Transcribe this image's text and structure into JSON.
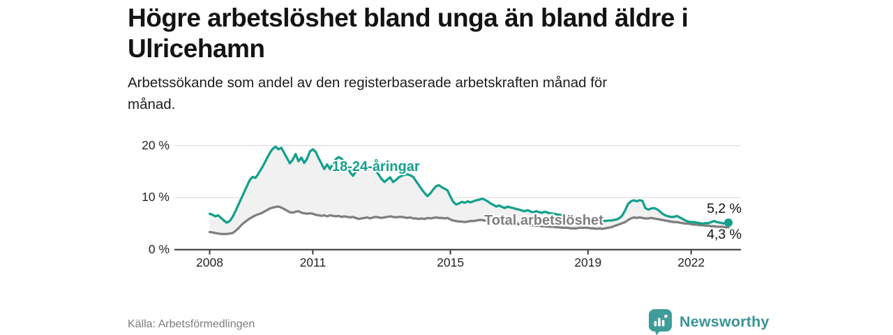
{
  "header": {
    "title": "Högre arbetslöshet bland unga än bland äldre i Ulricehamn",
    "title_lines": [
      "Högre arbetslöshet bland unga än bland äldre i",
      "Ulricehamn"
    ],
    "subtitle_lines": [
      "Arbetssökande som andel av den registerbaserade arbetskraften månad för",
      "månad."
    ]
  },
  "chart_data": {
    "type": "line",
    "x_start_year": 2008,
    "x_months_per_point": 1,
    "x_tick_years": [
      2008,
      2011,
      2015,
      2019,
      2022
    ],
    "y_ticks": [
      {
        "value": 0,
        "label": "0 %"
      },
      {
        "value": 10,
        "label": "10 %"
      },
      {
        "value": 20,
        "label": "20 %"
      }
    ],
    "ylim": [
      0,
      21.5
    ],
    "grid": "horizontal",
    "area_between_series": true,
    "series": [
      {
        "name": "18-24-åringar",
        "color": "#14a08d",
        "values": [
          6.9,
          6.7,
          6.4,
          6.6,
          6.1,
          5.6,
          5.2,
          5.5,
          6.3,
          7.4,
          8.6,
          9.8,
          11.0,
          12.2,
          13.4,
          14.0,
          13.8,
          14.6,
          15.5,
          16.5,
          17.6,
          18.6,
          19.4,
          19.8,
          19.3,
          19.6,
          18.6,
          17.6,
          16.6,
          17.3,
          18.4,
          17.0,
          17.7,
          16.7,
          17.5,
          18.9,
          19.3,
          18.8,
          17.6,
          16.6,
          15.5,
          16.4,
          15.5,
          16.6,
          17.4,
          17.8,
          17.5,
          16.8,
          16.0,
          14.9,
          14.2,
          15.0,
          15.7,
          15.9,
          15.5,
          15.3,
          15.7,
          15.9,
          15.2,
          14.4,
          13.6,
          13.0,
          13.5,
          13.9,
          13.0,
          13.4,
          13.9,
          14.2,
          14.4,
          14.5,
          14.3,
          14.0,
          13.2,
          12.4,
          11.6,
          10.9,
          10.3,
          10.8,
          11.6,
          12.2,
          12.4,
          12.0,
          11.7,
          11.4,
          10.2,
          9.2,
          8.7,
          8.9,
          9.2,
          9.0,
          9.3,
          9.1,
          9.3,
          9.5,
          9.6,
          9.8,
          9.6,
          9.3,
          8.9,
          8.6,
          8.3,
          8.5,
          8.2,
          8.0,
          8.3,
          8.1,
          8.0,
          7.8,
          7.7,
          7.5,
          7.4,
          7.6,
          7.3,
          7.2,
          7.4,
          7.2,
          7.1,
          7.3,
          7.1,
          7.0,
          6.9,
          6.8,
          6.7,
          6.6,
          6.5,
          6.4,
          6.3,
          6.2,
          6.1,
          6.0,
          6.0,
          5.9,
          5.9,
          5.8,
          5.7,
          5.6,
          5.6,
          5.5,
          5.5,
          5.6,
          5.6,
          5.7,
          5.8,
          6.1,
          6.6,
          7.6,
          8.8,
          9.3,
          9.5,
          9.3,
          9.5,
          9.4,
          8.0,
          7.7,
          7.9,
          8.0,
          7.8,
          7.4,
          6.9,
          6.6,
          6.4,
          6.3,
          6.3,
          6.5,
          6.2,
          5.9,
          5.6,
          5.4,
          5.3,
          5.3,
          5.2,
          5.1,
          5.0,
          5.1,
          5.1,
          5.3,
          5.5,
          5.3,
          5.2,
          5.1,
          5.0,
          5.2
        ]
      },
      {
        "name": "Total arbetslöshet",
        "color": "#7f7f7f",
        "values": [
          3.4,
          3.3,
          3.2,
          3.1,
          3.0,
          3.0,
          3.0,
          3.1,
          3.2,
          3.6,
          4.1,
          4.7,
          5.2,
          5.6,
          6.0,
          6.3,
          6.6,
          6.8,
          7.0,
          7.3,
          7.6,
          7.9,
          8.1,
          8.2,
          8.3,
          8.1,
          7.8,
          7.5,
          7.2,
          7.1,
          7.3,
          7.4,
          7.1,
          7.0,
          6.9,
          7.0,
          6.9,
          6.7,
          6.6,
          6.5,
          6.6,
          6.4,
          6.6,
          6.5,
          6.4,
          6.5,
          6.3,
          6.4,
          6.3,
          6.2,
          6.3,
          6.1,
          5.9,
          6.0,
          6.1,
          6.2,
          6.0,
          6.2,
          6.3,
          6.2,
          6.1,
          6.2,
          6.3,
          6.4,
          6.3,
          6.2,
          6.3,
          6.3,
          6.2,
          6.1,
          6.2,
          6.0,
          6.0,
          5.9,
          6.0,
          5.9,
          6.1,
          6.0,
          6.1,
          6.2,
          6.1,
          6.1,
          6.0,
          6.1,
          5.8,
          5.6,
          5.5,
          5.4,
          5.4,
          5.3,
          5.4,
          5.5,
          5.5,
          5.6,
          5.7,
          5.7,
          5.6,
          5.5,
          5.5,
          5.4,
          5.3,
          5.3,
          5.2,
          5.2,
          5.1,
          5.1,
          5.0,
          5.0,
          4.9,
          4.9,
          4.8,
          4.8,
          4.7,
          4.7,
          4.6,
          4.6,
          4.5,
          4.5,
          4.4,
          4.4,
          4.4,
          4.3,
          4.3,
          4.2,
          4.2,
          4.2,
          4.1,
          4.1,
          4.1,
          4.2,
          4.2,
          4.2,
          4.2,
          4.1,
          4.1,
          4.0,
          4.1,
          4.0,
          4.1,
          4.2,
          4.3,
          4.5,
          4.7,
          4.9,
          5.1,
          5.3,
          5.7,
          6.0,
          6.2,
          6.1,
          6.2,
          6.1,
          6.0,
          6.0,
          6.1,
          6.0,
          5.9,
          5.8,
          5.7,
          5.6,
          5.5,
          5.4,
          5.3,
          5.3,
          5.2,
          5.1,
          5.0,
          5.0,
          4.9,
          4.8,
          4.8,
          4.7,
          4.7,
          4.6,
          4.6,
          4.5,
          4.5,
          4.4,
          4.4,
          4.4,
          4.3,
          4.3
        ]
      }
    ],
    "end_labels": [
      {
        "series": "18-24-åringar",
        "text": "5,2 %"
      },
      {
        "series": "Total arbetslöshet",
        "text": "4,3 %"
      }
    ],
    "colors": {
      "accent_teal": "#14a08d",
      "line_gray": "#7f7f7f",
      "gridline": "#d8d8d8",
      "axis": "#3c3c3c",
      "area_fill": "#f1f1f1"
    }
  },
  "footer": {
    "source": "Källa: Arbetsförmedlingen",
    "brand": "Newsworthy",
    "brand_color": "#3a9495"
  }
}
